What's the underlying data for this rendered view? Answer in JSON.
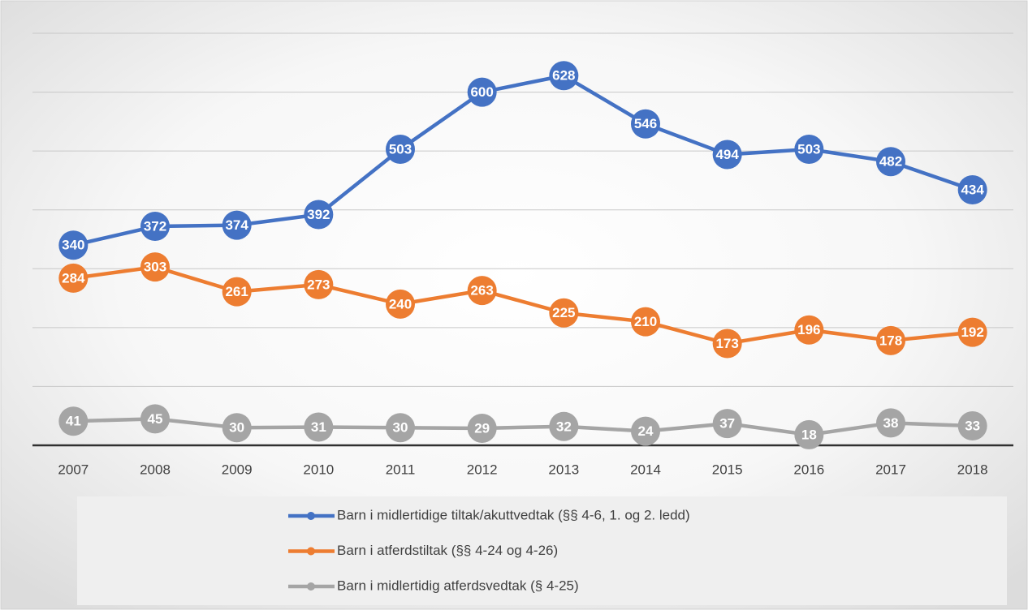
{
  "chart_data": {
    "type": "line",
    "categories": [
      "2007",
      "2008",
      "2009",
      "2010",
      "2011",
      "2012",
      "2013",
      "2014",
      "2015",
      "2016",
      "2017",
      "2018"
    ],
    "series": [
      {
        "name": "Barn i midlertidige tiltak/akuttvedtak (§§ 4-6, 1. og 2. ledd)",
        "color": "#4472c4",
        "values": [
          340,
          372,
          374,
          392,
          503,
          600,
          628,
          546,
          494,
          503,
          482,
          434
        ]
      },
      {
        "name": "Barn i atferdstiltak (§§ 4-24 og 4-26)",
        "color": "#ed7d31",
        "values": [
          284,
          303,
          261,
          273,
          240,
          263,
          225,
          210,
          173,
          196,
          178,
          192
        ]
      },
      {
        "name": "Barn i midlertidig atferdsvedtak (§ 4-25)",
        "color": "#a5a5a5",
        "values": [
          41,
          45,
          30,
          31,
          30,
          29,
          32,
          24,
          37,
          18,
          38,
          33
        ]
      }
    ],
    "ylim": [
      0,
      700
    ],
    "yticks": [
      0,
      100,
      200,
      300,
      400,
      500,
      600,
      700
    ],
    "grid": true,
    "legend": "bottom"
  }
}
